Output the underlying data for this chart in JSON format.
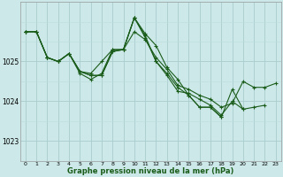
{
  "background_color": "#cce8e8",
  "grid_color_major": "#aacccc",
  "grid_color_minor": "#bbdddd",
  "line_color": "#1a5c1a",
  "xlabel": "Graphe pression niveau de la mer (hPa)",
  "ylim": [
    1022.6,
    1026.4
  ],
  "xlim": [
    -0.5,
    23.5
  ],
  "yticks": [
    1023,
    1024,
    1025
  ],
  "xticks": [
    0,
    1,
    2,
    3,
    4,
    5,
    6,
    7,
    8,
    9,
    10,
    11,
    12,
    13,
    14,
    15,
    16,
    17,
    18,
    19,
    20,
    21,
    22,
    23
  ],
  "series": [
    {
      "x": [
        0,
        1,
        2,
        3,
        4,
        5,
        6,
        7,
        8,
        9,
        10,
        11,
        12,
        13,
        14,
        15,
        16,
        17,
        18,
        19,
        20,
        21,
        22,
        23
      ],
      "y": [
        1025.75,
        1025.75,
        1025.1,
        1025.0,
        1025.2,
        1024.7,
        1024.55,
        1024.7,
        1025.3,
        1025.3,
        1025.75,
        1025.55,
        1025.1,
        1024.8,
        1024.4,
        1024.3,
        1024.15,
        1024.05,
        1023.85,
        1023.95,
        1024.5,
        1024.35,
        1024.35,
        1024.45
      ]
    },
    {
      "x": [
        0,
        1,
        2,
        3,
        4,
        5,
        6,
        7,
        8,
        9,
        10,
        11,
        12,
        13,
        14,
        15,
        16,
        17,
        18,
        19,
        20,
        21,
        22
      ],
      "y": [
        1025.75,
        1025.75,
        1025.1,
        1025.0,
        1025.2,
        1024.75,
        1024.7,
        1025.0,
        1025.3,
        1025.3,
        1026.1,
        1025.65,
        1025.0,
        1024.65,
        1024.25,
        1024.2,
        1024.05,
        1023.9,
        1023.65,
        1024.0,
        1023.8,
        1023.85,
        1023.9
      ]
    },
    {
      "x": [
        0,
        1,
        2,
        3,
        4,
        5,
        6,
        7,
        8,
        9,
        10,
        11,
        12,
        13,
        14,
        15,
        16,
        17,
        18,
        19,
        20
      ],
      "y": [
        1025.75,
        1025.75,
        1025.1,
        1025.0,
        1025.2,
        1024.75,
        1024.65,
        1024.65,
        1025.25,
        1025.3,
        1026.1,
        1025.6,
        1025.0,
        1024.7,
        1024.35,
        1024.15,
        1023.85,
        1023.85,
        1023.6,
        1024.3,
        1023.8
      ]
    },
    {
      "x": [
        0,
        1,
        2,
        3,
        4,
        5,
        6,
        7,
        8,
        9,
        10,
        11,
        12,
        13,
        14,
        15,
        16,
        17,
        18
      ],
      "y": [
        1025.75,
        1025.75,
        1025.1,
        1025.0,
        1025.2,
        1024.75,
        1024.65,
        1024.65,
        1025.25,
        1025.3,
        1026.1,
        1025.7,
        1025.4,
        1024.85,
        1024.55,
        1024.15,
        1023.85,
        1023.85,
        1023.6
      ]
    }
  ]
}
